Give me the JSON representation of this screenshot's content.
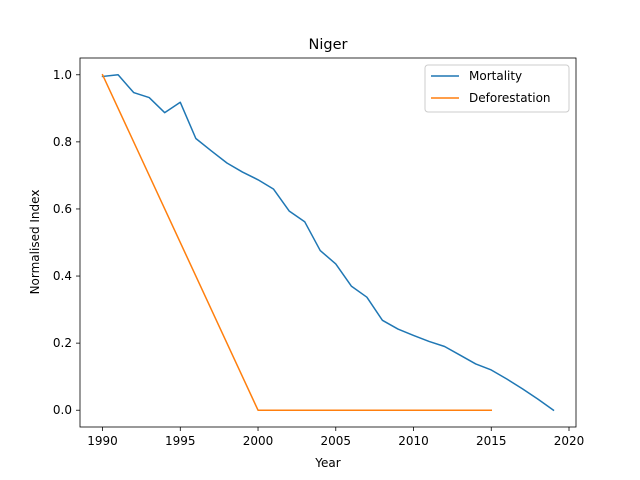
{
  "chart_data": {
    "type": "line",
    "title": "Niger",
    "xlabel": "Year",
    "ylabel": "Normalised Index",
    "xlim": [
      1988.55,
      2020.45
    ],
    "ylim": [
      -0.05,
      1.05
    ],
    "xticks": [
      1990,
      1995,
      2000,
      2005,
      2010,
      2015,
      2020
    ],
    "yticks": [
      0.0,
      0.2,
      0.4,
      0.6,
      0.8,
      1.0
    ],
    "xtick_labels": [
      "1990",
      "1995",
      "2000",
      "2005",
      "2010",
      "2015",
      "2020"
    ],
    "ytick_labels": [
      "0.0",
      "0.2",
      "0.4",
      "0.6",
      "0.8",
      "1.0"
    ],
    "grid": false,
    "legend_position": "top-right",
    "series": [
      {
        "name": "Mortality",
        "color": "#1f77b4",
        "x": [
          1990,
          1991,
          1992,
          1993,
          1994,
          1995,
          1996,
          1997,
          1998,
          1999,
          2000,
          2001,
          2002,
          2003,
          2004,
          2005,
          2006,
          2007,
          2008,
          2009,
          2010,
          2011,
          2012,
          2013,
          2014,
          2015,
          2016,
          2017,
          2018,
          2019
        ],
        "y": [
          0.995,
          1.0,
          0.947,
          0.932,
          0.887,
          0.918,
          0.81,
          0.773,
          0.737,
          0.71,
          0.687,
          0.659,
          0.594,
          0.562,
          0.476,
          0.436,
          0.37,
          0.337,
          0.268,
          0.242,
          0.223,
          0.205,
          0.19,
          0.164,
          0.138,
          0.12,
          0.093,
          0.064,
          0.033,
          0.0
        ]
      },
      {
        "name": "Deforestation",
        "color": "#ff7f0e",
        "x": [
          1990,
          2000,
          2001,
          2002,
          2003,
          2004,
          2005,
          2006,
          2007,
          2008,
          2009,
          2010,
          2011,
          2012,
          2013,
          2014,
          2015
        ],
        "y": [
          1.0,
          0.0,
          0.0,
          0.0,
          0.0,
          0.0,
          0.0,
          0.0,
          0.0,
          0.0,
          0.0,
          0.0,
          0.0,
          0.0,
          0.0,
          0.0,
          0.0
        ]
      }
    ]
  }
}
